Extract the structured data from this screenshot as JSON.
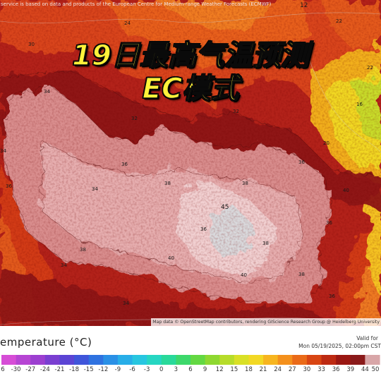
{
  "credits": {
    "top": "service is based on data and products of the European Centre for Medium-range Weather Forecasts (ECMWF)",
    "bottom": "Map data © OpenStreetMap contributors, rendering GIScience Research Group @ Heidelberg University"
  },
  "title": {
    "line1": "19日最高气温预测",
    "line2": "EC模式",
    "color": "#fff23a"
  },
  "legend": {
    "title": "emperature (°C)",
    "valid_label": "Valid for",
    "valid_time": "Mon 05/19/2025, 02:00pm CST",
    "ticks": [
      "6",
      "-30",
      "-27",
      "-24",
      "-21",
      "-18",
      "-15",
      "-12",
      "-9",
      "-6",
      "-3",
      "0",
      "3",
      "6",
      "9",
      "12",
      "15",
      "18",
      "21",
      "24",
      "27",
      "30",
      "33",
      "36",
      "39",
      "44",
      "50"
    ],
    "colors": [
      "#d64dd6",
      "#b645d3",
      "#9c3fd0",
      "#7a3fd1",
      "#5b44d4",
      "#3f55da",
      "#2f72e0",
      "#2a90e6",
      "#28aee8",
      "#27c6e0",
      "#26d6c2",
      "#29d99a",
      "#3dd86b",
      "#63d842",
      "#8ed830",
      "#b6dc2a",
      "#d9e026",
      "#f2d824",
      "#f7b51f",
      "#f4901c",
      "#ea6a18",
      "#d84513",
      "#bd2a12",
      "#9a1712",
      "#8a1a1a",
      "#d8a6a8",
      "#f2e8ea"
    ]
  },
  "map_labels": [
    {
      "text": "24",
      "kind": "value"
    },
    {
      "text": "22",
      "kind": "value"
    },
    {
      "text": "12",
      "kind": "value"
    },
    {
      "text": "16",
      "kind": "value"
    },
    {
      "text": "20",
      "kind": "value"
    },
    {
      "text": "34",
      "kind": "value"
    },
    {
      "text": "36",
      "kind": "value"
    },
    {
      "text": "38",
      "kind": "value"
    },
    {
      "text": "40",
      "kind": "value"
    },
    {
      "text": "45",
      "kind": "value"
    },
    {
      "text": "32",
      "kind": "value"
    },
    {
      "text": "30",
      "kind": "value"
    },
    {
      "text": "28",
      "kind": "value"
    },
    {
      "text": "26",
      "kind": "value"
    },
    {
      "text": "18",
      "kind": "value"
    },
    {
      "text": "14",
      "kind": "value"
    }
  ]
}
